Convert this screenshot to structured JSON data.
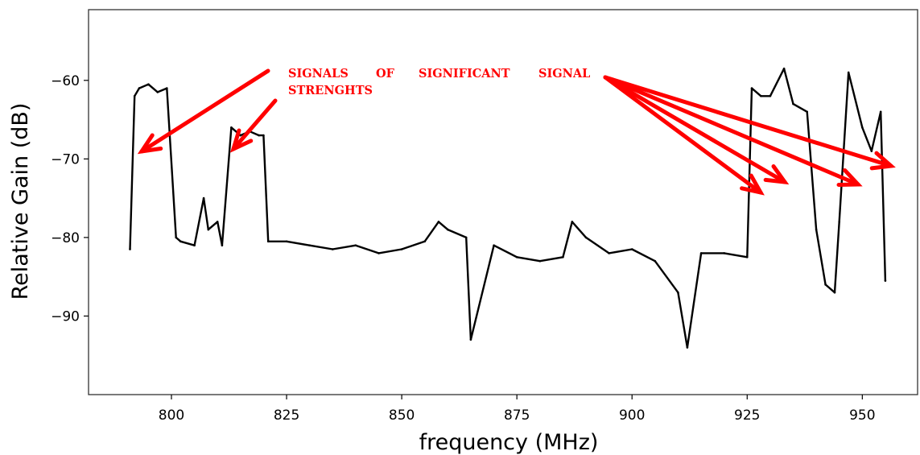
{
  "chart_data": {
    "type": "line",
    "title": "",
    "xlabel": "frequency (MHz)",
    "ylabel": "Relative Gain (dB)",
    "xlim": [
      782,
      962
    ],
    "ylim": [
      -100,
      -51
    ],
    "xticks": [
      800,
      825,
      850,
      875,
      900,
      925,
      950
    ],
    "yticks": [
      -60,
      -70,
      -80,
      -90
    ],
    "ytick_labels": [
      "−60",
      "−70",
      "−80",
      "−90"
    ],
    "grid": false,
    "legend": "none",
    "series": [
      {
        "color": "#000000",
        "x": [
          791,
          792,
          793,
          795,
          797,
          799,
          801,
          802,
          805,
          807,
          808,
          810,
          811,
          813,
          815,
          817,
          819,
          820,
          821,
          825,
          830,
          835,
          840,
          845,
          850,
          855,
          858,
          860,
          864,
          865,
          870,
          875,
          880,
          885,
          887,
          890,
          895,
          900,
          905,
          910,
          912,
          915,
          920,
          925,
          926,
          928,
          930,
          933,
          935,
          938,
          940,
          942,
          944,
          945,
          947,
          950,
          952,
          954,
          955
        ],
        "y": [
          -81.5,
          -62,
          -61,
          -60.5,
          -61.5,
          -61,
          -80,
          -80.5,
          -81,
          -75,
          -79,
          -78,
          -81,
          -66,
          -67,
          -66.5,
          -67,
          -67,
          -80.5,
          -80.5,
          -81,
          -81.5,
          -81,
          -82,
          -81.5,
          -80.5,
          -78,
          -79,
          -80,
          -93,
          -81,
          -82.5,
          -83,
          -82.5,
          -78,
          -80,
          -82,
          -81.5,
          -83,
          -87,
          -94,
          -82,
          -82,
          -82.5,
          -61,
          -62,
          -62,
          -58.5,
          -63,
          -64,
          -79,
          -86,
          -87,
          -78,
          -59,
          -66,
          -69,
          -64,
          -85.5
        ]
      }
    ],
    "annotations": [
      {
        "text_line1": "SIGNALS",
        "text_line1b": "OF",
        "text_line1c": "SIGNIFICANT",
        "text_line1d": "SIGNAL",
        "text_line2": "STRENGHTS",
        "color": "#ff0000"
      }
    ]
  }
}
